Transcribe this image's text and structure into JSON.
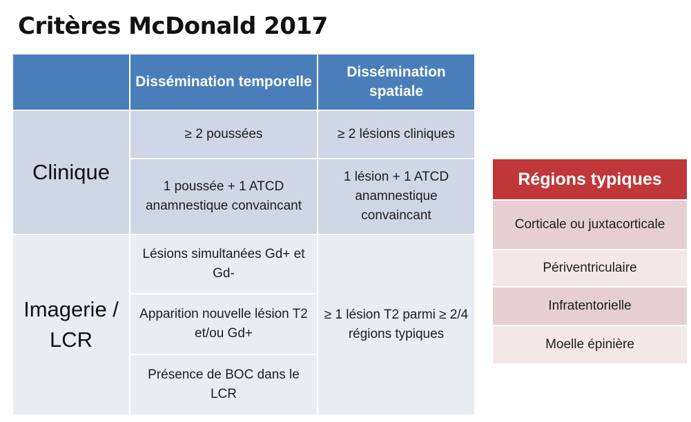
{
  "title": "Critères McDonald 2017",
  "table": {
    "headers": [
      "",
      "Dissémination temporelle",
      "Dissémination spatiale"
    ],
    "clinique": {
      "label": "Clinique",
      "temporelle": [
        "≥ 2 poussées",
        "1 poussée + 1 ATCD anamnestique convaincant"
      ],
      "spatiale": [
        "≥ 2 lésions cliniques",
        "1 lésion + 1 ATCD anamnestique convaincant"
      ]
    },
    "imagerie": {
      "label": "Imagerie / LCR",
      "temporelle": [
        "Lésions simultanées Gd+ et Gd-",
        "Apparition nouvelle lésion T2 et/ou Gd+",
        "Présence de BOC dans le LCR"
      ],
      "spatiale": "≥ 1 lésion T2 parmi ≥ 2/4 régions typiques"
    }
  },
  "regions": {
    "title": "Régions typiques",
    "items": [
      "Corticale ou juxtacorticale",
      "Périventriculaire",
      "Infratentorielle",
      "Moelle épinière"
    ]
  },
  "colors": {
    "header_blue": "#4a7ebb",
    "cell_dark_blue": "#cfd6e6",
    "cell_light_blue": "#e8ecf3",
    "region_red": "#c0373a",
    "region_dark_pink": "#e7cfd1",
    "region_light_pink": "#f3e7e8"
  }
}
